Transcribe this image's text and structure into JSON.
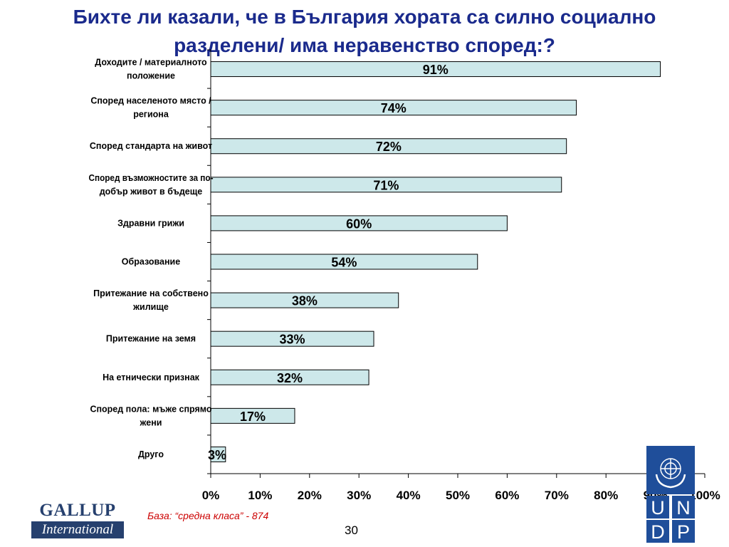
{
  "title": {
    "line1": "Бихте ли казали, че в България хората са силно социално",
    "line2": "разделени/ има неравенство според:?"
  },
  "chart_data": {
    "type": "bar",
    "orientation": "horizontal",
    "categories": [
      [
        "Доходите / материалното",
        "положение"
      ],
      [
        "Според населеното място /",
        "региона"
      ],
      [
        "Според стандарта на живот"
      ],
      [
        "Според възможностите за по-",
        "добър живот в бъдеще"
      ],
      [
        "Здравни грижи"
      ],
      [
        "Образование"
      ],
      [
        "Притежание на собствено",
        "жилище"
      ],
      [
        "Притежание на земя"
      ],
      [
        "На етнически признак"
      ],
      [
        "Според пола: мъже спрямо",
        "жени"
      ],
      [
        "Друго"
      ]
    ],
    "values": [
      91,
      74,
      72,
      71,
      60,
      54,
      38,
      33,
      32,
      17,
      3
    ],
    "data_labels": [
      "91%",
      "74%",
      "72%",
      "71%",
      "60%",
      "54%",
      "38%",
      "33%",
      "32%",
      "17%",
      "3%"
    ],
    "xlim": [
      0,
      100
    ],
    "x_ticks": [
      "0%",
      "10%",
      "20%",
      "30%",
      "40%",
      "50%",
      "60%",
      "70%",
      "80%",
      "90%",
      "100%"
    ],
    "grid": false,
    "bar_color": "#cde8ea",
    "bar_border_color": "#000000"
  },
  "footer": {
    "logo_line1": "GALLUP",
    "logo_line2": "International",
    "base_note": "База: “средна класа” - 874",
    "page_number": "30",
    "undp_letters": [
      "U",
      "N",
      "D",
      "P"
    ]
  },
  "colors": {
    "title": "#1a2a8c",
    "undp_blue": "#1f4e9a",
    "gallup_navy": "#26406e",
    "note_red": "#cc0000"
  }
}
